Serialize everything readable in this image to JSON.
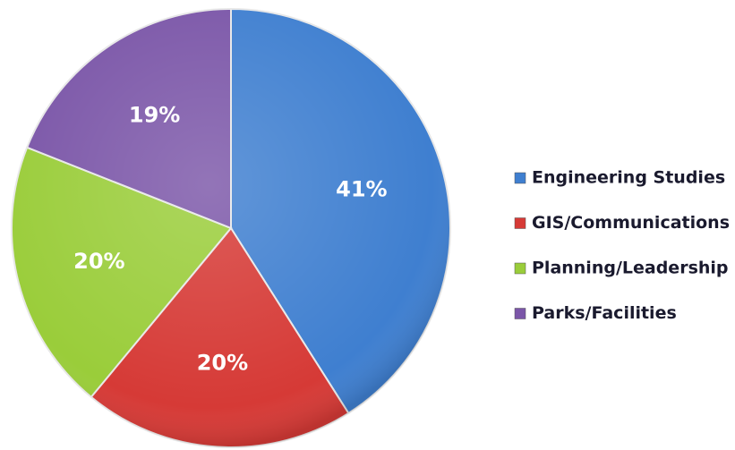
{
  "chart_data": {
    "type": "pie",
    "categories": [
      "Engineering Studies",
      "GIS/Communications",
      "Planning/Leadership",
      "Parks/Facilities"
    ],
    "values": [
      41,
      20,
      20,
      19
    ],
    "value_labels": [
      "41%",
      "20%",
      "20%",
      "19%"
    ],
    "colors": [
      "#3f7fd0",
      "#d63a36",
      "#9acd3a",
      "#7b56a8"
    ],
    "legend": "right"
  }
}
